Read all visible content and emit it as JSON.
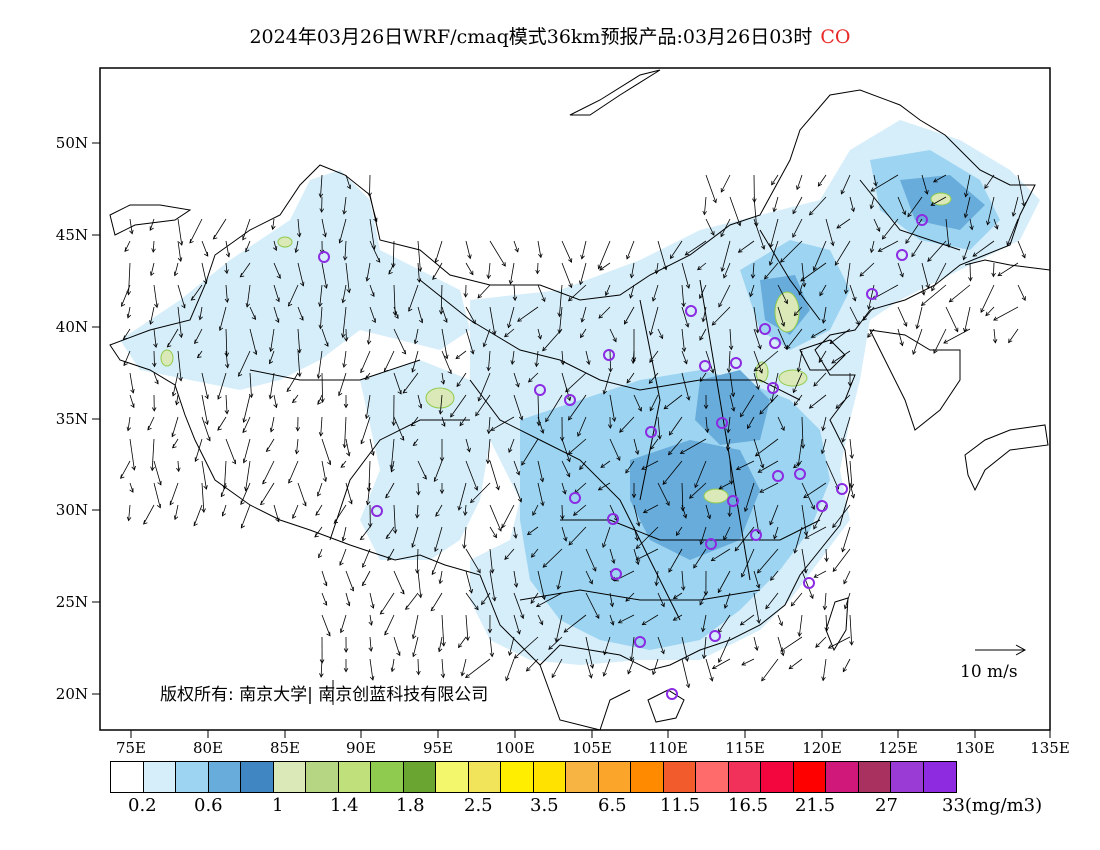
{
  "title": {
    "text": "2024年03月26日WRF/cmaq模式36km预报产品:03月26日03时",
    "pollutant": "CO",
    "pollutant_color": "#e8292a"
  },
  "axes": {
    "y_ticks": [
      "50N",
      "45N",
      "40N",
      "35N",
      "30N",
      "25N",
      "20N"
    ],
    "x_ticks": [
      "75E",
      "80E",
      "85E",
      "90E",
      "95E",
      "100E",
      "105E",
      "110E",
      "115E",
      "120E",
      "125E",
      "130E",
      "135E"
    ]
  },
  "copyright": "版权所有: 南京大学| 南京创蓝科技有限公司",
  "wind_reference": "10 m/s",
  "colorbar": {
    "colors": [
      "#ffffff",
      "#d6eefa",
      "#9dd4f1",
      "#67acdb",
      "#3f86c2",
      "#dbe9b8",
      "#b6d683",
      "#bfe07a",
      "#8fcb4e",
      "#6aa531",
      "#f2f76b",
      "#f2e45a",
      "#ffee00",
      "#ffe200",
      "#f7b443",
      "#fba52b",
      "#ff8a00",
      "#f25b2b",
      "#ff6b6b",
      "#f2315b",
      "#f2063d",
      "#ff0000",
      "#d0187a",
      "#a8315f",
      "#9b3bd6",
      "#8e2ae0"
    ],
    "labels": [
      "0.2",
      "0.6",
      "1",
      "1.4",
      "1.8",
      "2.5",
      "3.5",
      "6.5",
      "11.5",
      "16.5",
      "21.5",
      "27",
      "33(mg/m3)"
    ]
  },
  "concentration_colors": {
    "light": "#d6eefa",
    "medium": "#9dd4f1",
    "dark": "#67acdb",
    "hotspot": "#dbe9b8"
  },
  "marker_color": "#8b2be2"
}
